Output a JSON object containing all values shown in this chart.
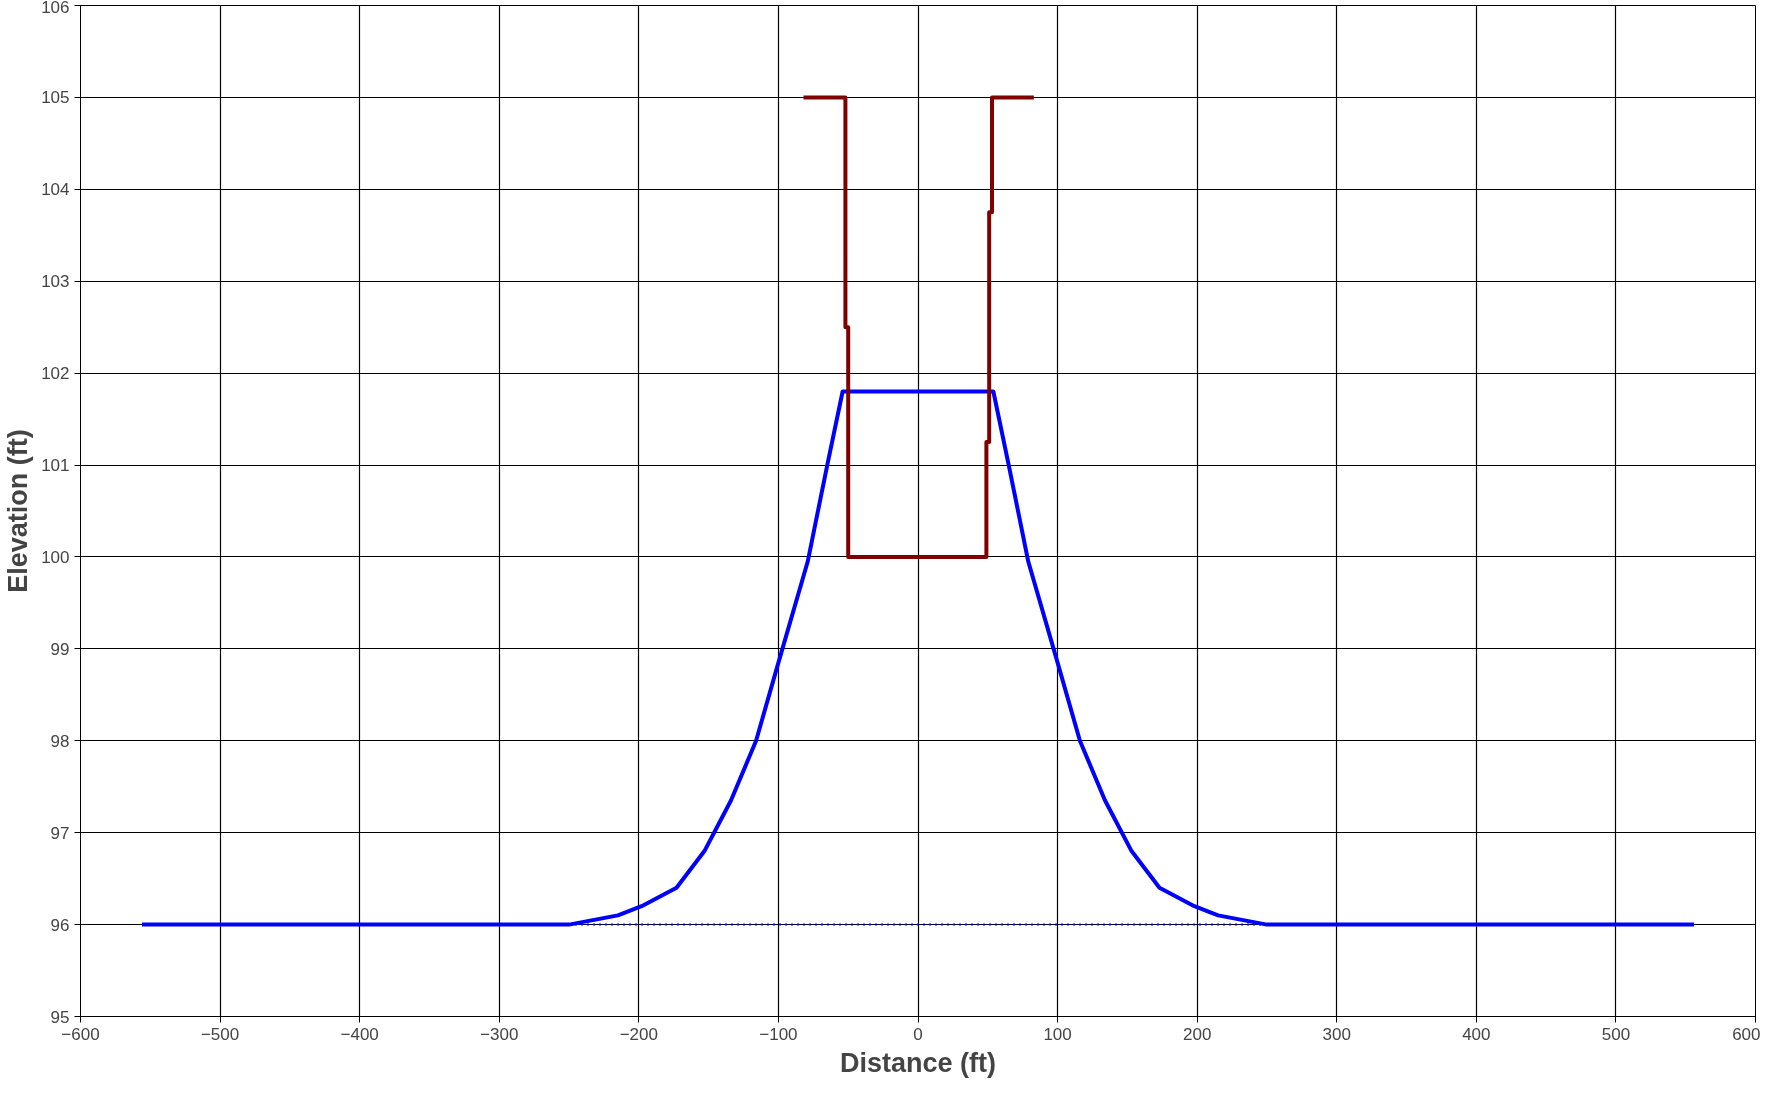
{
  "chart_data": {
    "type": "line",
    "xlabel": "Distance (ft)",
    "ylabel": "Elevation (ft)",
    "xlim": [
      -600,
      600
    ],
    "xticks": [
      -600,
      -500,
      -400,
      -300,
      -200,
      -100,
      0,
      100,
      200,
      300,
      400,
      500,
      600
    ],
    "ylim": [
      95,
      106
    ],
    "yticks": [
      95,
      96,
      97,
      98,
      99,
      100,
      101,
      102,
      103,
      104,
      105,
      106
    ],
    "grid": true,
    "marker": "none",
    "line_style": "solid",
    "series": [
      {
        "color": "#0000ff",
        "line_style": "dotted",
        "x": [
          -250,
          250
        ],
        "values": [
          96,
          96
        ]
      },
      {
        "color": "#0000ff",
        "x": [
          -556,
          -250,
          -215,
          -198,
          -173,
          -153,
          -134,
          -116,
          -100,
          -79,
          -65,
          -54,
          54,
          65,
          79,
          100,
          116,
          134,
          153,
          173,
          198,
          215,
          250,
          556
        ],
        "values": [
          96,
          96,
          96.1,
          96.2,
          96.4,
          96.8,
          97.35,
          98,
          98.85,
          99.95,
          101,
          101.8,
          101.8,
          101,
          99.95,
          98.85,
          98,
          97.35,
          96.8,
          96.4,
          96.2,
          96.1,
          96,
          96
        ]
      },
      {
        "color": "#800000",
        "x": [
          -82,
          -52,
          -52,
          -50,
          -50,
          49,
          49,
          51,
          51,
          53,
          53,
          83
        ],
        "values": [
          105,
          105,
          102.5,
          102.5,
          100,
          100,
          101.25,
          101.25,
          103.75,
          103.75,
          105,
          105
        ]
      }
    ]
  }
}
